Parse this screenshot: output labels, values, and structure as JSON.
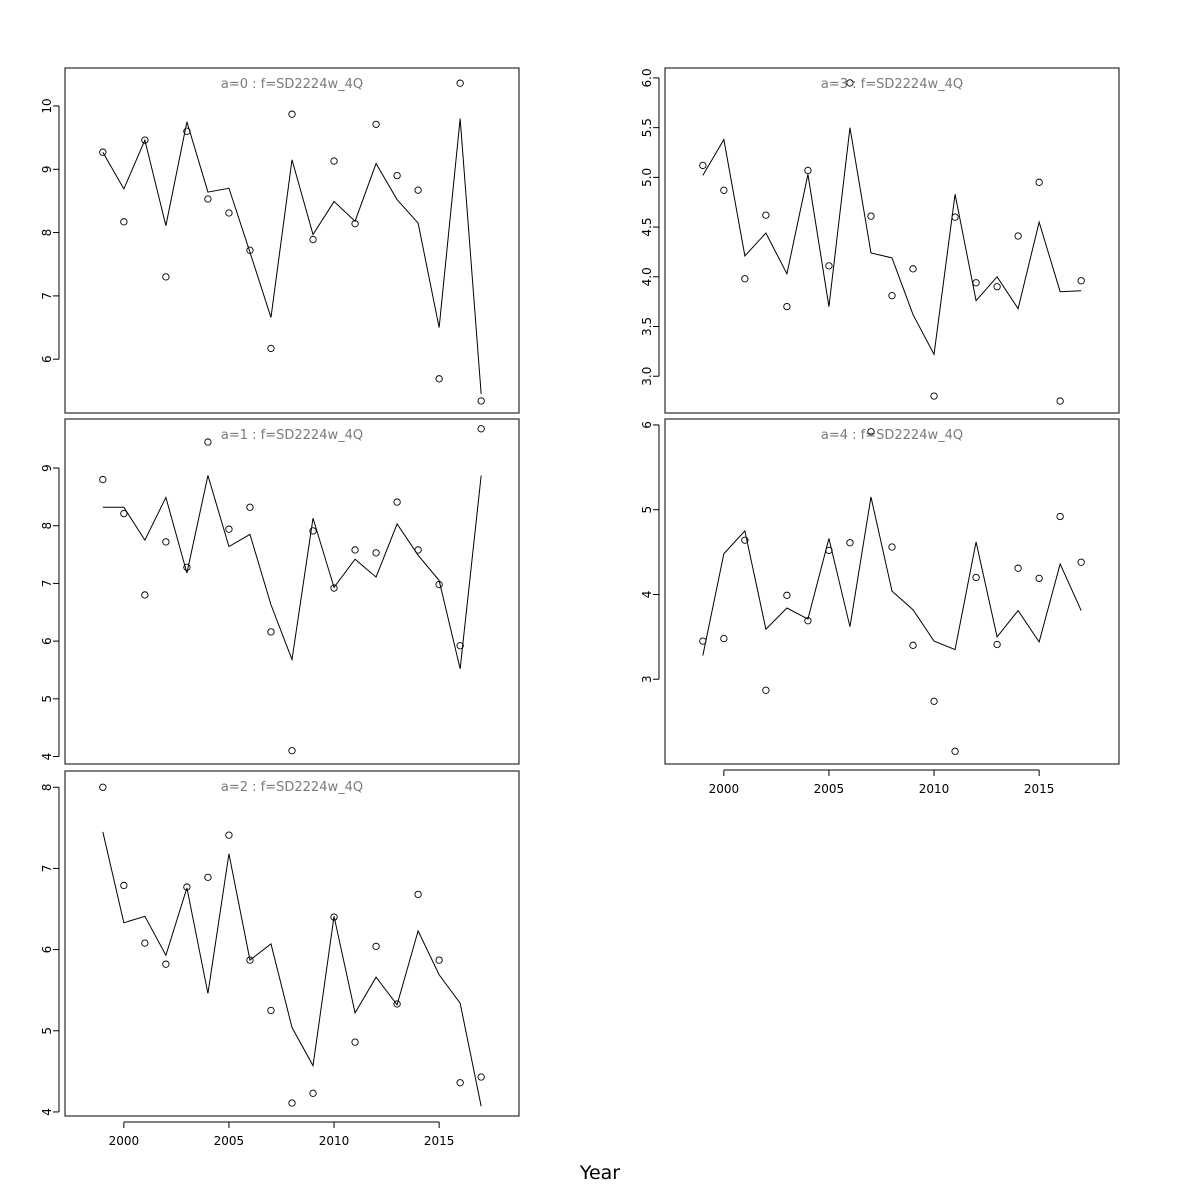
{
  "chart_data": {
    "xlabel": "Year",
    "x_ticks": [
      2000,
      2005,
      2010,
      2015
    ],
    "xlim": [
      1997.2,
      2018.8
    ],
    "panels": [
      {
        "title": "a=0  :  f=SD2224w_4Q",
        "type": "line+scatter",
        "ylim": [
          5.15,
          10.6
        ],
        "y_ticks": [
          6,
          7,
          8,
          9,
          10
        ],
        "x": [
          1999,
          2000,
          2001,
          2002,
          2003,
          2004,
          2005,
          2006,
          2007,
          2008,
          2009,
          2010,
          2011,
          2012,
          2013,
          2014,
          2015,
          2016,
          2017
        ],
        "observed": [
          9.27,
          8.17,
          9.46,
          7.3,
          9.6,
          8.53,
          8.31,
          7.72,
          6.17,
          9.87,
          7.89,
          9.13,
          8.14,
          9.71,
          8.9,
          8.67,
          5.69,
          10.36,
          5.34
        ],
        "fitted": [
          9.27,
          8.69,
          9.46,
          8.11,
          9.75,
          8.64,
          8.7,
          7.69,
          6.66,
          9.15,
          7.97,
          8.49,
          8.18,
          9.09,
          8.52,
          8.15,
          6.5,
          9.8,
          5.45
        ]
      },
      {
        "title": "a=1  :  f=SD2224w_4Q",
        "type": "line+scatter",
        "ylim": [
          3.87,
          9.85
        ],
        "y_ticks": [
          4,
          5,
          6,
          7,
          8,
          9
        ],
        "x": [
          1999,
          2000,
          2001,
          2002,
          2003,
          2004,
          2005,
          2006,
          2007,
          2008,
          2009,
          2010,
          2011,
          2012,
          2013,
          2014,
          2015,
          2016,
          2017
        ],
        "observed": [
          8.8,
          8.21,
          6.8,
          7.72,
          7.28,
          9.45,
          7.94,
          8.32,
          6.16,
          4.1,
          7.91,
          6.92,
          7.58,
          7.53,
          8.41,
          7.58,
          6.98,
          5.92,
          9.68
        ],
        "fitted": [
          8.32,
          8.32,
          7.75,
          8.49,
          7.18,
          8.87,
          7.64,
          7.85,
          6.63,
          5.68,
          8.13,
          6.93,
          7.42,
          7.11,
          8.03,
          7.49,
          7.05,
          5.52,
          8.87
        ]
      },
      {
        "title": "a=2  :  f=SD2224w_4Q",
        "type": "line+scatter",
        "ylim": [
          3.95,
          8.2
        ],
        "y_ticks": [
          4,
          5,
          6,
          7,
          8
        ],
        "x": [
          1999,
          2000,
          2001,
          2002,
          2003,
          2004,
          2005,
          2006,
          2007,
          2008,
          2009,
          2010,
          2011,
          2012,
          2013,
          2014,
          2015,
          2016,
          2017
        ],
        "observed": [
          8.0,
          6.79,
          6.08,
          5.82,
          6.77,
          6.89,
          7.41,
          5.87,
          5.25,
          4.11,
          4.23,
          6.4,
          4.86,
          6.04,
          5.33,
          6.68,
          5.87,
          4.36,
          4.43
        ],
        "fitted": [
          7.45,
          6.33,
          6.41,
          5.93,
          6.76,
          5.46,
          7.18,
          5.87,
          6.07,
          5.04,
          4.57,
          6.41,
          5.22,
          5.66,
          5.32,
          6.23,
          5.69,
          5.34,
          4.07
        ]
      },
      {
        "title": "a=3  :  f=SD2224w_4Q",
        "type": "line+scatter",
        "ylim": [
          2.63,
          6.1
        ],
        "y_ticks": [
          3.0,
          3.5,
          4.0,
          4.5,
          5.0,
          5.5,
          6.0
        ],
        "x": [
          1999,
          2000,
          2001,
          2002,
          2003,
          2004,
          2005,
          2006,
          2007,
          2008,
          2009,
          2010,
          2011,
          2012,
          2013,
          2014,
          2015,
          2016,
          2017
        ],
        "observed": [
          5.12,
          4.87,
          3.98,
          4.62,
          3.7,
          5.07,
          4.11,
          5.95,
          4.61,
          3.81,
          4.08,
          2.8,
          4.6,
          3.94,
          3.9,
          4.41,
          4.95,
          2.75,
          3.96
        ],
        "fitted": [
          5.02,
          5.38,
          4.21,
          4.44,
          4.03,
          5.03,
          3.7,
          5.5,
          4.24,
          4.19,
          3.62,
          3.22,
          4.83,
          3.76,
          4.0,
          3.68,
          4.55,
          3.85,
          3.86
        ]
      },
      {
        "title": "a=4  :  f=SD2224w_4Q",
        "type": "line+scatter",
        "ylim": [
          2.0,
          6.07
        ],
        "y_ticks": [
          3,
          4,
          5,
          6
        ],
        "x": [
          1999,
          2000,
          2001,
          2002,
          2003,
          2004,
          2005,
          2006,
          2007,
          2008,
          2009,
          2010,
          2011,
          2012,
          2013,
          2014,
          2015,
          2016,
          2017
        ],
        "observed": [
          3.45,
          3.48,
          4.64,
          2.87,
          3.99,
          3.69,
          4.52,
          4.61,
          5.92,
          4.56,
          3.4,
          2.74,
          2.15,
          4.2,
          3.41,
          4.31,
          4.19,
          4.92,
          4.38
        ],
        "fitted": [
          3.28,
          4.48,
          4.75,
          3.59,
          3.84,
          3.71,
          4.66,
          3.62,
          5.15,
          4.04,
          3.82,
          3.45,
          3.35,
          4.62,
          3.5,
          3.81,
          3.44,
          4.36,
          3.81
        ]
      }
    ]
  }
}
